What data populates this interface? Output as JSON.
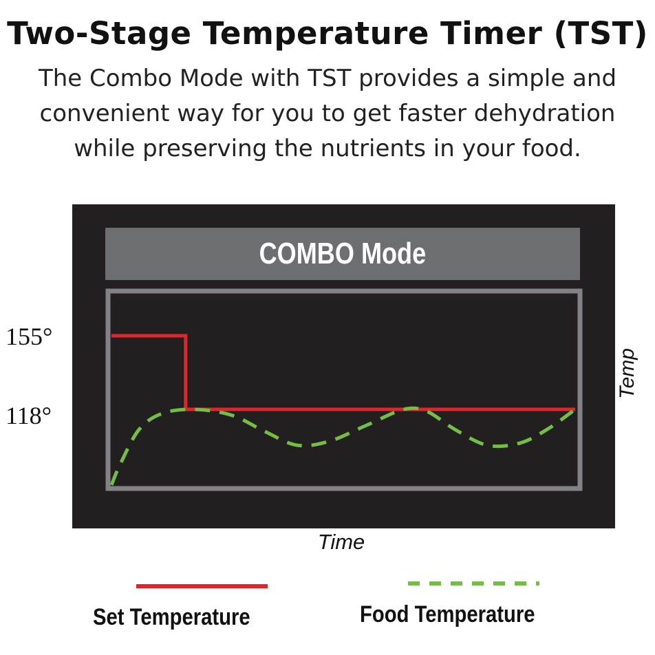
{
  "title": "Two-Stage Temperature Timer (TST)",
  "subtitle_lines": [
    "The Combo Mode with TST provides a simple and",
    "convenient way for you to get faster dehydration",
    "while preserving the nutrients in your food."
  ],
  "colors": {
    "panel": "#231f20",
    "header": "#6d6e71",
    "frame": "#808285",
    "set_line": "#e0252b",
    "food_line": "#72bf44"
  },
  "chart_data": {
    "type": "line",
    "title": "COMBO Mode",
    "xlabel": "Time",
    "ylabel": "Temp",
    "y_ticks": [
      "155°",
      "118°"
    ],
    "grid": false,
    "legend_position": "bottom",
    "series": [
      {
        "name": "Set Temperature",
        "style": "solid",
        "points": [
          [
            0,
            155
          ],
          [
            0.16,
            155
          ],
          [
            0.16,
            118
          ],
          [
            1,
            118
          ]
        ]
      },
      {
        "name": "Food Temperature",
        "style": "dashed",
        "points": [
          [
            0,
            80
          ],
          [
            0.02,
            91
          ],
          [
            0.06,
            108
          ],
          [
            0.11,
            116
          ],
          [
            0.18,
            118
          ],
          [
            0.26,
            115
          ],
          [
            0.33,
            107
          ],
          [
            0.4,
            100
          ],
          [
            0.47,
            102
          ],
          [
            0.55,
            110
          ],
          [
            0.63,
            118
          ],
          [
            0.68,
            117
          ],
          [
            0.74,
            108
          ],
          [
            0.81,
            100
          ],
          [
            0.88,
            101
          ],
          [
            0.94,
            108
          ],
          [
            1,
            118
          ]
        ]
      }
    ]
  }
}
